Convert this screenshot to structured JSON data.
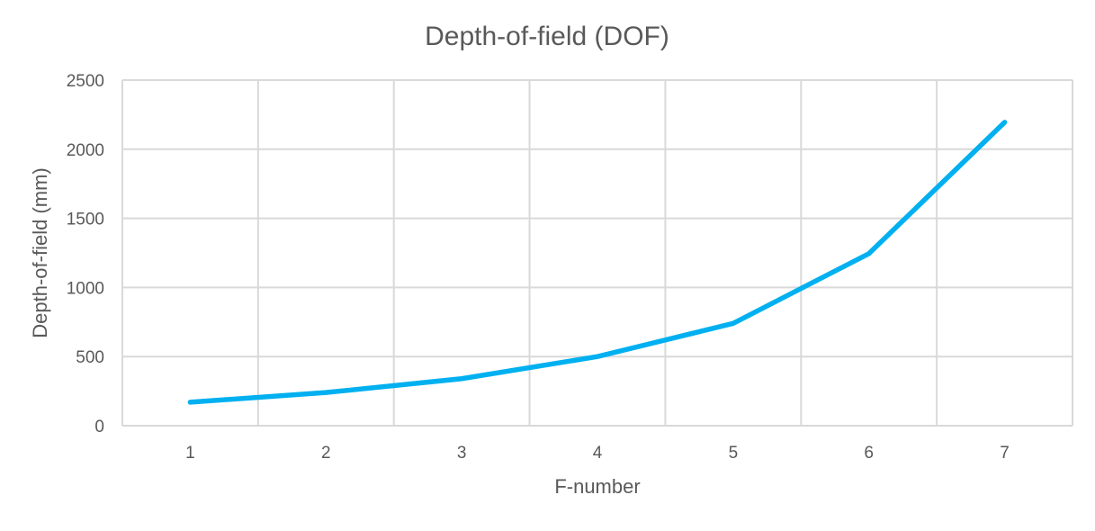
{
  "chart_data": {
    "type": "line",
    "title": "Depth-of-field (DOF)",
    "xlabel": "F-number",
    "ylabel": "Depth-of-field (mm)",
    "categories": [
      "1",
      "2",
      "3",
      "4",
      "5",
      "6",
      "7"
    ],
    "series": [
      {
        "values": [
          170,
          240,
          340,
          500,
          740,
          1245,
          2195
        ]
      }
    ],
    "ylim": [
      0,
      2500
    ],
    "yticks": [
      0,
      500,
      1000,
      1500,
      2000,
      2500
    ],
    "grid": true,
    "legend": "none",
    "colors": {
      "line": "#00b0f0",
      "grid": "#d9d9d9",
      "text": "#595959"
    }
  }
}
